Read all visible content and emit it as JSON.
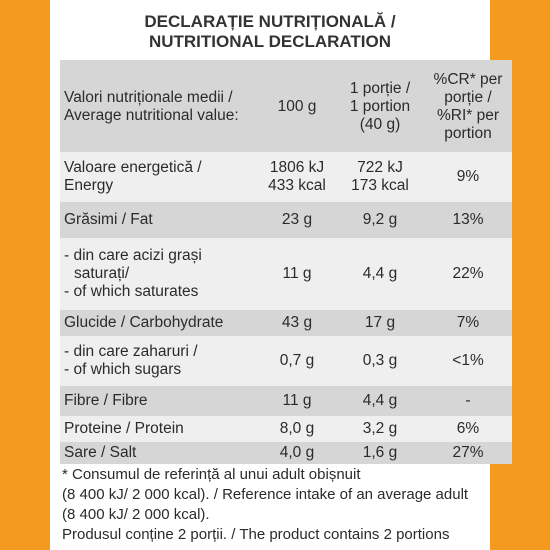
{
  "title_ro": "DECLARAȚIE NUTRIȚIONALĂ /",
  "title_en": "NUTRITIONAL DECLARATION",
  "header": {
    "col1_line1": "Valori nutriționale medii /",
    "col1_line2": "Average nutritional value:",
    "col2": "100 g",
    "col3_line1": "1 porție /",
    "col3_line2": "1 portion",
    "col3_line3": "(40 g)",
    "col4_line1": "%CR* per",
    "col4_line2": "porție /",
    "col4_line3": "%RI* per",
    "col4_line4": "portion"
  },
  "rows": [
    {
      "l1": "Valoare energetică /",
      "l2": "Energy",
      "l3": "",
      "v100_1": "1806 kJ",
      "v100_2": "433 kcal",
      "vp_1": "722 kJ",
      "vp_2": "173 kcal",
      "pct": "9%"
    },
    {
      "l1": "Grăsimi / Fat",
      "l2": "",
      "l3": "",
      "v100_1": "23 g",
      "v100_2": "",
      "vp_1": "9,2 g",
      "vp_2": "",
      "pct": "13%"
    },
    {
      "l1": "- din care acizi grași",
      "l2": "  saturați/",
      "l3": "- of which saturates",
      "v100_1": "11 g",
      "v100_2": "",
      "vp_1": "4,4 g",
      "vp_2": "",
      "pct": "22%"
    },
    {
      "l1": "Glucide / Carbohydrate",
      "l2": "",
      "l3": "",
      "v100_1": "43 g",
      "v100_2": "",
      "vp_1": "17 g",
      "vp_2": "",
      "pct": "7%"
    },
    {
      "l1": "- din care zaharuri /",
      "l2": "- of which sugars",
      "l3": "",
      "v100_1": "0,7 g",
      "v100_2": "",
      "vp_1": "0,3 g",
      "vp_2": "",
      "pct": "<1%"
    },
    {
      "l1": "Fibre / Fibre",
      "l2": "",
      "l3": "",
      "v100_1": "11 g",
      "v100_2": "",
      "vp_1": "4,4 g",
      "vp_2": "",
      "pct": "-"
    },
    {
      "l1": "Proteine / Protein",
      "l2": "",
      "l3": "",
      "v100_1": "8,0 g",
      "v100_2": "",
      "vp_1": "3,2 g",
      "vp_2": "",
      "pct": "6%"
    },
    {
      "l1": "Sare / Salt",
      "l2": "",
      "l3": "",
      "v100_1": "4,0 g",
      "v100_2": "",
      "vp_1": "1,6 g",
      "vp_2": "",
      "pct": "27%"
    }
  ],
  "footer": {
    "line1": "* Consumul de referință al unui adult obișnuit",
    "line2": "(8 400 kJ/ 2 000 kcal). / Reference intake of an average adult",
    "line3": "(8 400 kJ/ 2 000 kcal).",
    "line4": "Produsul conține 2 porții. / The product contains 2 portions"
  }
}
